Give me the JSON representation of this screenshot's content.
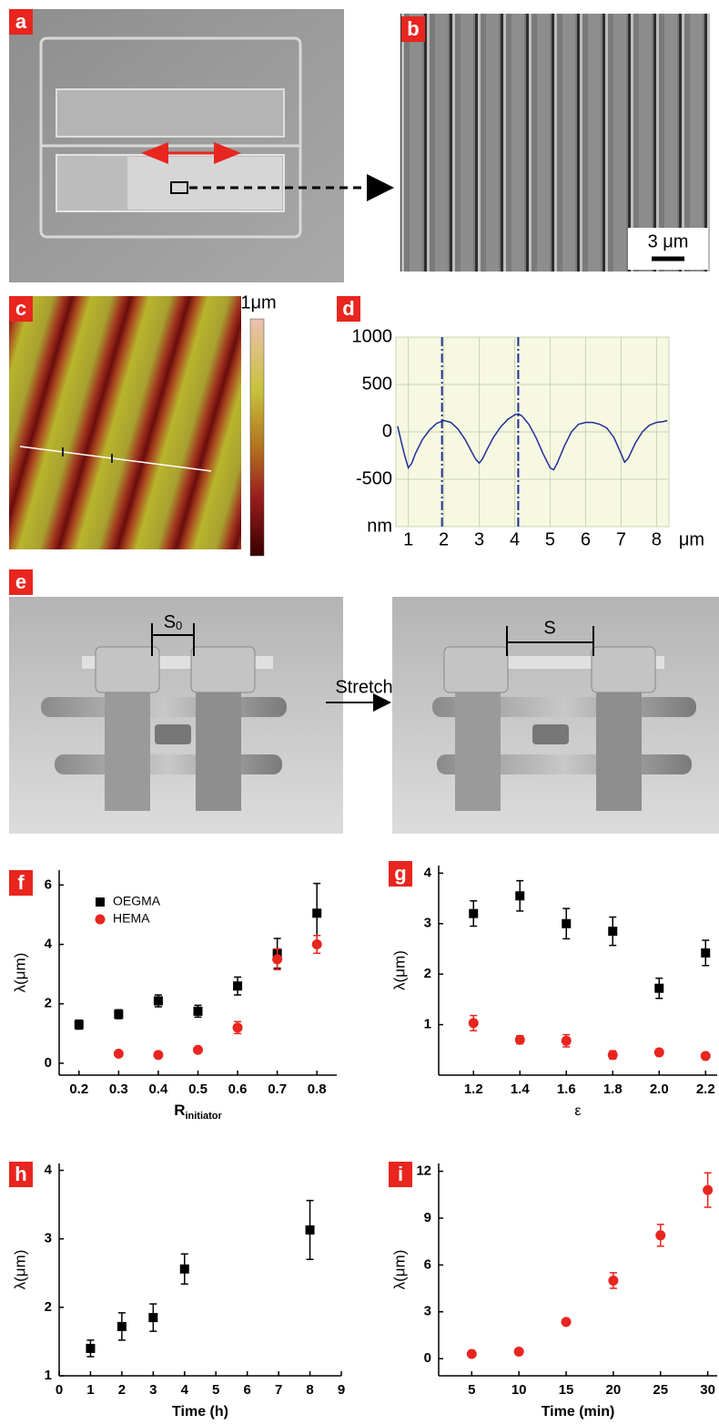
{
  "panel_labels": [
    "a",
    "b",
    "c",
    "d",
    "e",
    "f",
    "g",
    "h",
    "i"
  ],
  "image_texts": {
    "scale_bar": "3 μm",
    "colorbar_max": "1μm",
    "s0": "S",
    "s0_sub": "0",
    "s": "S",
    "stretch": "Stretch"
  },
  "chart_data": [
    {
      "type": "line",
      "x": [
        0.7,
        0.8,
        0.9,
        1.0,
        1.1,
        1.2,
        1.4,
        1.6,
        1.8,
        2.0,
        2.2,
        2.4,
        2.6,
        2.8,
        2.9,
        3.0,
        3.1,
        3.2,
        3.4,
        3.6,
        3.8,
        4.0,
        4.1,
        4.2,
        4.4,
        4.6,
        4.8,
        5.0,
        5.1,
        5.2,
        5.4,
        5.6,
        5.8,
        6.0,
        6.2,
        6.4,
        6.6,
        6.8,
        7.0,
        7.1,
        7.2,
        7.4,
        7.6,
        7.8,
        8.0,
        8.2,
        8.3
      ],
      "series": [
        {
          "color": "#1f2f9a",
          "values": [
            60,
            -100,
            -250,
            -380,
            -330,
            -230,
            -80,
            20,
            90,
            120,
            100,
            30,
            -80,
            -220,
            -290,
            -330,
            -280,
            -200,
            -60,
            50,
            130,
            180,
            190,
            170,
            80,
            -60,
            -230,
            -380,
            -400,
            -330,
            -150,
            0,
            80,
            100,
            100,
            80,
            40,
            -60,
            -230,
            -320,
            -280,
            -120,
            0,
            70,
            100,
            110,
            120
          ]
        }
      ],
      "xlim": [
        0.65,
        8.35
      ],
      "ylim": [
        -1000,
        1000
      ],
      "xticks": [
        1,
        2,
        3,
        4,
        5,
        6,
        7,
        8
      ],
      "yticks": [
        1000,
        500,
        0,
        -500,
        {
          "value": -1000,
          "label": "nm"
        }
      ],
      "x_unit": "μm",
      "vlines": [
        1.95,
        4.1
      ],
      "grid": true
    },
    {
      "type": "scatter",
      "ylabel": "λ(μm)",
      "xlabel": "R",
      "xlabel_sub": "initiator",
      "x": [
        0.2,
        0.3,
        0.4,
        0.5,
        0.6,
        0.7,
        0.8
      ],
      "series": [
        {
          "name": "OEGMA",
          "color": "#000000",
          "marker": "square",
          "values": [
            1.3,
            1.65,
            2.1,
            1.75,
            2.6,
            3.7,
            5.05
          ],
          "errors": [
            0.15,
            0.15,
            0.2,
            0.2,
            0.3,
            0.5,
            1.0
          ]
        },
        {
          "name": "HEMA",
          "color": "#e8251f",
          "marker": "circle",
          "values": [
            null,
            0.32,
            0.28,
            0.45,
            1.2,
            3.5,
            4.0
          ],
          "errors": [
            null,
            0.05,
            0.05,
            0.05,
            0.2,
            0.35,
            0.3
          ]
        }
      ],
      "xlim": [
        0.15,
        0.85
      ],
      "ylim": [
        -0.4,
        6.5
      ],
      "xticks": [
        0.2,
        0.3,
        0.4,
        0.5,
        0.6,
        0.7,
        0.8
      ],
      "yticks": [
        0,
        2,
        4,
        6
      ],
      "legend": "upper left"
    },
    {
      "type": "scatter",
      "ylabel": "λ(μm)",
      "xlabel": "ε",
      "x": [
        1.2,
        1.4,
        1.6,
        1.8,
        2.0,
        2.2
      ],
      "series": [
        {
          "color": "#000000",
          "marker": "square",
          "values": [
            3.2,
            3.55,
            3.0,
            2.85,
            1.72,
            2.42
          ],
          "errors": [
            0.25,
            0.3,
            0.3,
            0.28,
            0.2,
            0.25
          ]
        },
        {
          "color": "#e8251f",
          "marker": "circle",
          "values": [
            1.03,
            0.7,
            0.68,
            0.4,
            0.45,
            0.38
          ],
          "errors": [
            0.15,
            0.08,
            0.12,
            0.08,
            0.05,
            0.03
          ]
        }
      ],
      "xlim": [
        1.05,
        2.25
      ],
      "ylim": [
        0,
        4.15
      ],
      "xticks": [
        1.2,
        1.4,
        1.6,
        1.8,
        {
          "value": 2,
          "label": "2.0"
        },
        2.2
      ],
      "yticks": [
        1,
        2,
        3,
        4
      ]
    },
    {
      "type": "scatter",
      "ylabel": "λ(μm)",
      "xlabel": "Time (h)",
      "x": [
        1,
        2,
        3,
        4,
        8
      ],
      "series": [
        {
          "color": "#000000",
          "marker": "square",
          "values": [
            1.4,
            1.72,
            1.85,
            2.56,
            3.13
          ],
          "errors": [
            0.12,
            0.2,
            0.2,
            0.22,
            0.43
          ]
        }
      ],
      "xlim": [
        0,
        9
      ],
      "ylim": [
        1,
        4.1
      ],
      "xticks": [
        0,
        1,
        2,
        3,
        4,
        5,
        6,
        7,
        8,
        9
      ],
      "yticks": [
        1,
        2,
        3,
        4
      ]
    },
    {
      "type": "scatter",
      "ylabel": "λ(μm)",
      "xlabel": "Time (min)",
      "x": [
        5,
        10,
        15,
        20,
        25,
        30
      ],
      "series": [
        {
          "color": "#e8251f",
          "marker": "circle",
          "values": [
            0.3,
            0.45,
            2.35,
            5.0,
            7.9,
            10.8
          ],
          "errors": [
            0.05,
            0.05,
            0.1,
            0.5,
            0.7,
            1.1
          ]
        }
      ],
      "xlim": [
        1.5,
        31
      ],
      "ylim": [
        -1.1,
        12.5
      ],
      "xticks": [
        5,
        10,
        15,
        20,
        25,
        30
      ],
      "yticks": [
        0,
        3,
        6,
        9,
        12
      ]
    }
  ]
}
